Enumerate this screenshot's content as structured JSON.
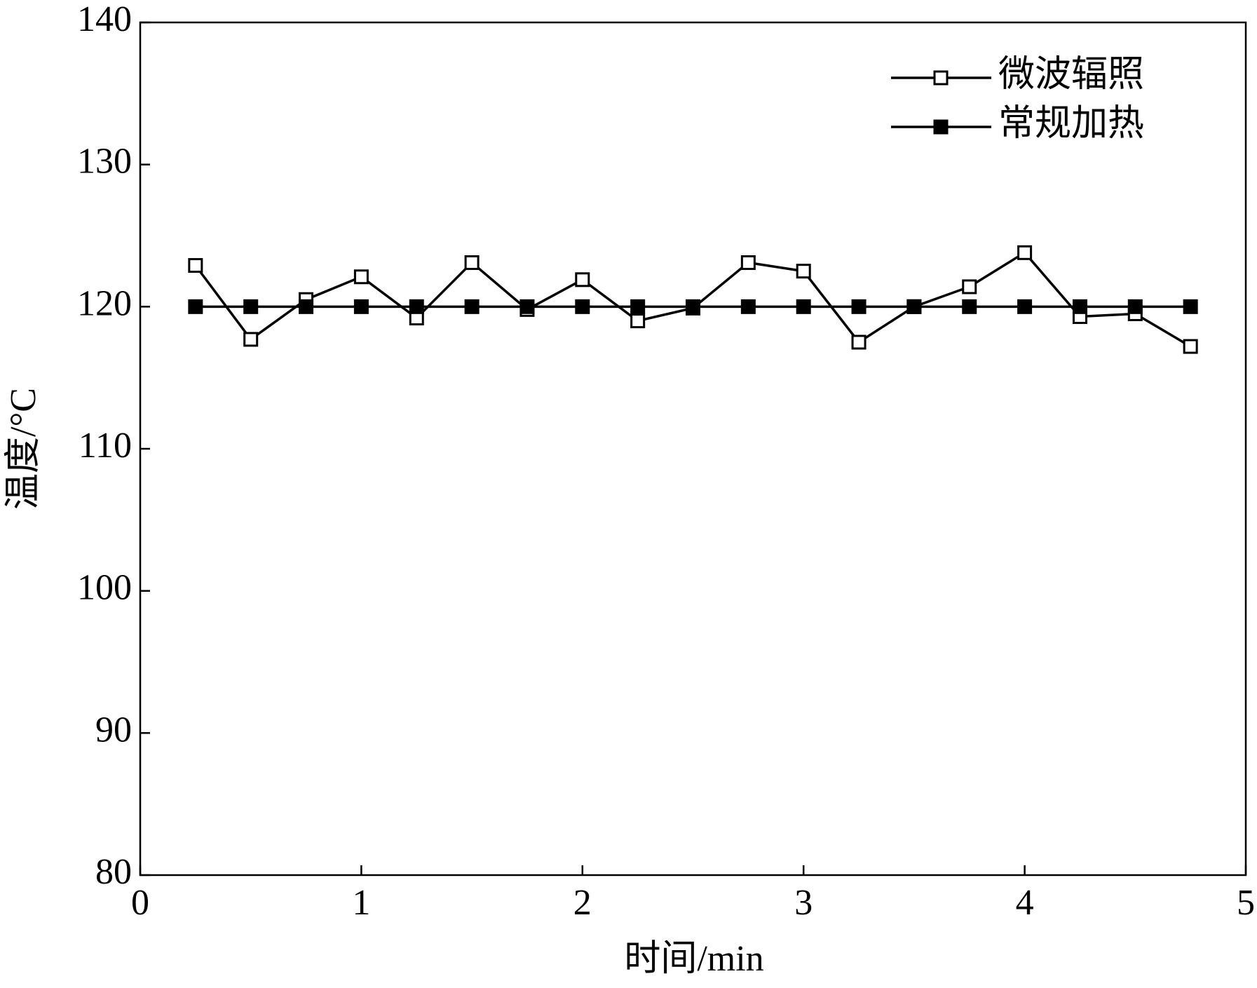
{
  "chart_data": {
    "type": "line",
    "x_label": "时间/min",
    "y_label": "温度/°C",
    "xlim": [
      0,
      5
    ],
    "xticks": [
      0,
      1,
      2,
      3,
      4,
      5
    ],
    "ylim": [
      80,
      140
    ],
    "yticks": [
      80,
      90,
      100,
      110,
      120,
      130,
      140
    ],
    "legend": "upper right",
    "series": [
      {
        "name": "微波辐照",
        "color": "#000000",
        "marker": "open-square",
        "x": [
          0.25,
          0.5,
          0.75,
          1,
          1.25,
          1.5,
          1.75,
          2,
          2.25,
          2.5,
          2.75,
          3,
          3.25,
          3.5,
          3.75,
          4,
          4.25,
          4.5,
          4.75
        ],
        "values": [
          122.9,
          117.7,
          120.5,
          122.1,
          119.2,
          123.1,
          119.8,
          121.9,
          119.0,
          119.9,
          123.1,
          122.5,
          117.5,
          120.0,
          121.4,
          123.8,
          119.3,
          119.5,
          117.2
        ]
      },
      {
        "name": "常规加热",
        "color": "#000000",
        "marker": "filled-square",
        "x": [
          0.25,
          0.5,
          0.75,
          1,
          1.25,
          1.5,
          1.75,
          2,
          2.25,
          2.5,
          2.75,
          3,
          3.25,
          3.5,
          3.75,
          4,
          4.25,
          4.5,
          4.75
        ],
        "values": [
          120,
          120,
          120,
          120,
          120,
          120,
          120,
          120,
          120,
          120,
          120,
          120,
          120,
          120,
          120,
          120,
          120,
          120,
          120
        ]
      }
    ]
  }
}
